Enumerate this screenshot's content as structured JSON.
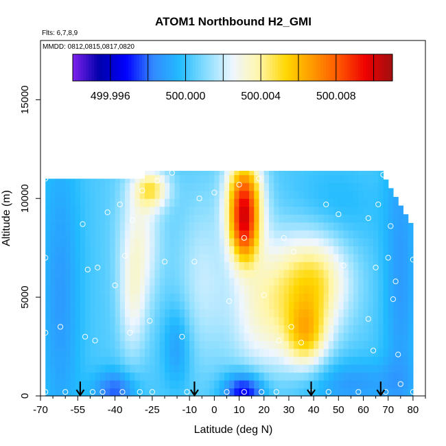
{
  "chart_data": {
    "type": "heatmap",
    "title": "ATOM1 Northbound H2_GMI",
    "notes": [
      "Flts: 6,7,8,9",
      "MMDD: 0812,0815,0817,0820"
    ],
    "xlabel": "Latitude (deg N)",
    "ylabel": "Altitude (m)",
    "xlim": [
      -70,
      85
    ],
    "ylim": [
      0,
      18000
    ],
    "x_ticks": [
      -70,
      -55,
      -40,
      -25,
      -10,
      0,
      10,
      20,
      30,
      40,
      50,
      60,
      70,
      80
    ],
    "x_minor_ticks": [
      -65,
      -60,
      -50,
      -45,
      -35,
      -30,
      -20,
      -15,
      -5,
      5,
      15,
      25,
      35,
      45,
      55,
      65,
      75,
      85
    ],
    "y_ticks": [
      0,
      5000,
      10000,
      15000
    ],
    "colorbar": {
      "range": [
        499.994,
        500.011
      ],
      "tick_values": [
        499.996,
        500.0,
        500.004,
        500.008
      ],
      "tick_labels": [
        "499.996",
        "500.000",
        "500.004",
        "500.008"
      ],
      "divisions": [
        499.996,
        499.998,
        500.0,
        500.002,
        500.004,
        500.006,
        500.008,
        500.01
      ],
      "colors": [
        "#7f22ee",
        "#0000aa",
        "#0000ff",
        "#3388ff",
        "#22bbff",
        "#88ddff",
        "#eef6ff",
        "#fff6aa",
        "#ffd700",
        "#ff9900",
        "#ff5500",
        "#ee0000",
        "#a01010"
      ]
    },
    "flight_arrows_lat": [
      -54,
      -8,
      39,
      67
    ],
    "field": {
      "lat_start": -68,
      "lat_step": 2,
      "alt_start": 0,
      "alt_step": 400,
      "left_top_alt": 11000,
      "anomaly": {
        "base": 500.0003,
        "blobs": [
          {
            "lat": 12,
            "alt": 10000,
            "slat": 5,
            "salt": 1600,
            "amp": 0.0075
          },
          {
            "lat": 12,
            "alt": 8200,
            "slat": 4,
            "salt": 1200,
            "amp": 0.004
          },
          {
            "lat": 40,
            "alt": 5800,
            "slat": 10,
            "salt": 1800,
            "amp": 0.0045
          },
          {
            "lat": 37,
            "alt": 3000,
            "slat": 6,
            "salt": 1200,
            "amp": 0.004
          },
          {
            "lat": 20,
            "alt": 4500,
            "slat": 10,
            "salt": 2500,
            "amp": 0.003
          },
          {
            "lat": -25,
            "alt": 10500,
            "slat": 5,
            "salt": 700,
            "amp": 0.0035
          },
          {
            "lat": -30,
            "alt": 8000,
            "slat": 6,
            "salt": 2500,
            "amp": 0.0025
          },
          {
            "lat": -33,
            "alt": 4500,
            "slat": 4,
            "salt": 2000,
            "amp": 0.0018
          },
          {
            "lat": -5,
            "alt": 6000,
            "slat": 7,
            "salt": 3000,
            "amp": 0.0015
          },
          {
            "lat": -62,
            "alt": 5000,
            "slat": 6,
            "salt": 6000,
            "amp": -0.0015
          },
          {
            "lat": 75,
            "alt": 6000,
            "slat": 5,
            "salt": 6000,
            "amp": -0.0015
          },
          {
            "lat": 12,
            "alt": 200,
            "slat": 6,
            "salt": 700,
            "amp": -0.004
          },
          {
            "lat": -40,
            "alt": 300,
            "slat": 6,
            "salt": 700,
            "amp": -0.0025
          },
          {
            "lat": 55,
            "alt": 600,
            "slat": 15,
            "salt": 900,
            "amp": -0.0015
          },
          {
            "lat": -15,
            "alt": 2500,
            "slat": 4,
            "salt": 1500,
            "amp": -0.0015
          },
          {
            "lat": 48,
            "alt": 9500,
            "slat": 12,
            "salt": 1500,
            "amp": -0.0008
          }
        ]
      }
    },
    "sample_points": [
      [
        -68,
        11000
      ],
      [
        -68,
        7000
      ],
      [
        -68,
        3200
      ],
      [
        -68,
        200
      ],
      [
        -62,
        3500
      ],
      [
        -60,
        200
      ],
      [
        -53,
        8700
      ],
      [
        -52,
        3000
      ],
      [
        -51,
        6400
      ],
      [
        -49,
        200
      ],
      [
        -48,
        2800
      ],
      [
        -47,
        6500
      ],
      [
        -45,
        200
      ],
      [
        -43,
        9300
      ],
      [
        -40,
        5600
      ],
      [
        -38,
        9700
      ],
      [
        -37,
        200
      ],
      [
        -36,
        7100
      ],
      [
        -34,
        3200
      ],
      [
        -33,
        8900
      ],
      [
        -30,
        200
      ],
      [
        -29,
        10400
      ],
      [
        -26,
        3800
      ],
      [
        -25,
        200
      ],
      [
        -23,
        10900
      ],
      [
        -20,
        6800
      ],
      [
        -17,
        11300
      ],
      [
        -13,
        3000
      ],
      [
        -11,
        200
      ],
      [
        -8,
        6800
      ],
      [
        -6,
        10000
      ],
      [
        0,
        10300
      ],
      [
        5,
        200
      ],
      [
        6,
        4800
      ],
      [
        10,
        10700
      ],
      [
        12,
        8000
      ],
      [
        12,
        200
      ],
      [
        18,
        11000
      ],
      [
        19,
        200
      ],
      [
        20,
        5100
      ],
      [
        25,
        200
      ],
      [
        26,
        2800
      ],
      [
        28,
        8000
      ],
      [
        31,
        3500
      ],
      [
        32,
        7300
      ],
      [
        35,
        2700
      ],
      [
        39,
        200
      ],
      [
        45,
        9700
      ],
      [
        46,
        200
      ],
      [
        50,
        9200
      ],
      [
        52,
        6600
      ],
      [
        58,
        200
      ],
      [
        62,
        3900
      ],
      [
        62,
        9000
      ],
      [
        64,
        2300
      ],
      [
        65,
        6500
      ],
      [
        66,
        9700
      ],
      [
        68,
        11200
      ],
      [
        69,
        200
      ],
      [
        70,
        7000
      ],
      [
        71,
        8600
      ],
      [
        72,
        4900
      ],
      [
        73,
        5800
      ],
      [
        74,
        2100
      ],
      [
        75,
        600
      ],
      [
        77,
        9900
      ],
      [
        80,
        6900
      ],
      [
        80,
        200
      ]
    ]
  }
}
